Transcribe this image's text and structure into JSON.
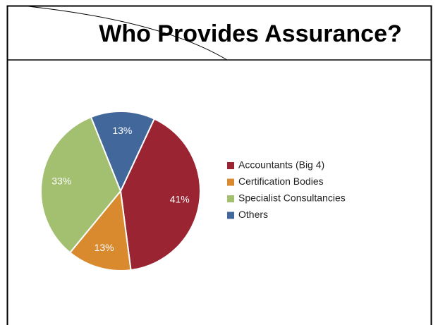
{
  "chart_data": {
    "type": "pie",
    "title": "Who Provides Assurance?",
    "categories": [
      "Accountants (Big 4)",
      "Certification Bodies",
      "Specialist Consultancies",
      "Others"
    ],
    "values": [
      41,
      13,
      33,
      13
    ],
    "value_labels": [
      "41%",
      "13%",
      "33%",
      "13%"
    ],
    "colors": [
      "#9b2433",
      "#d98a2f",
      "#a2c06f",
      "#42679a"
    ],
    "legend": "right"
  }
}
